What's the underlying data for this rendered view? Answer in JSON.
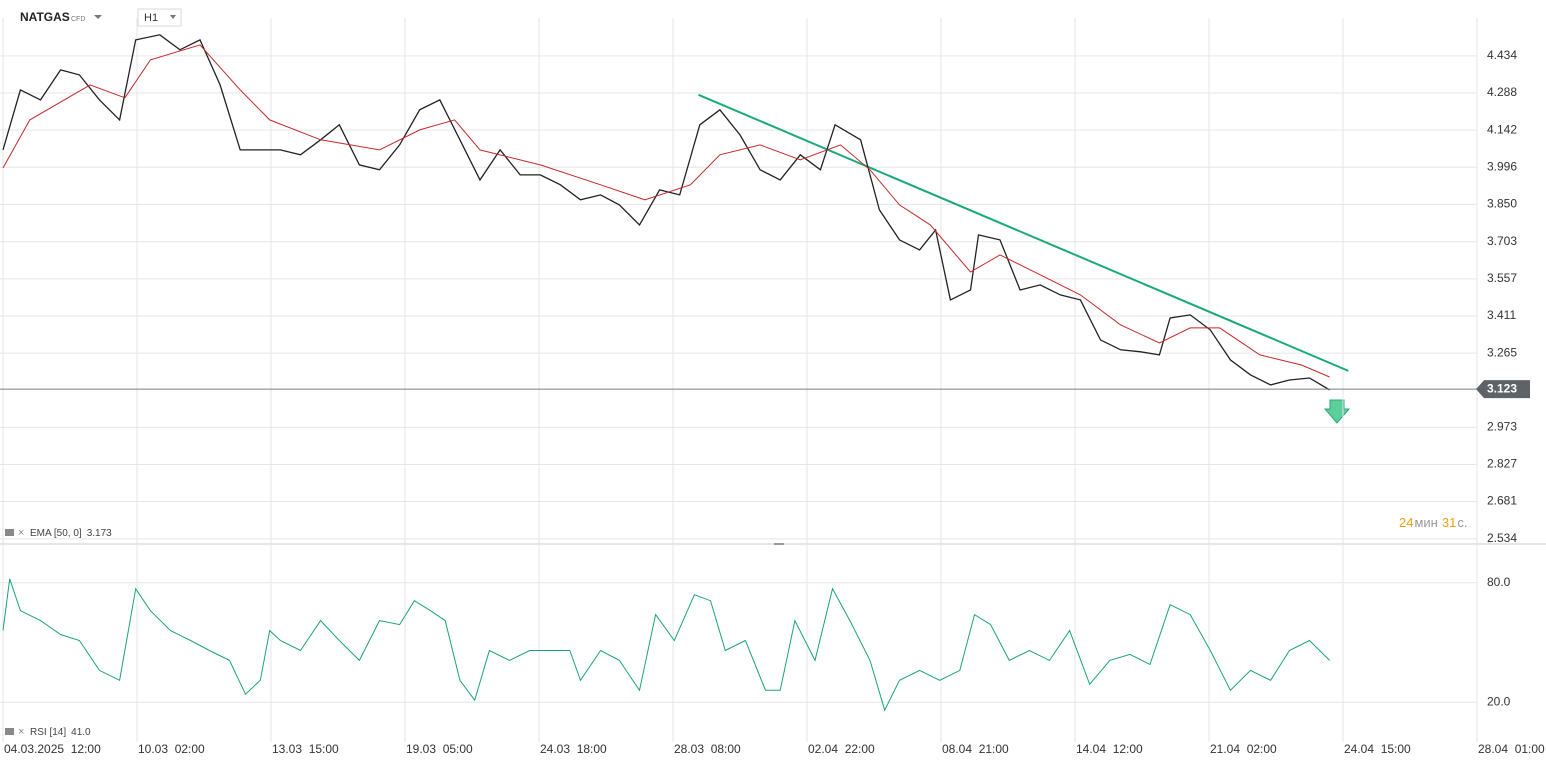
{
  "chart_data": [
    {
      "type": "line",
      "title": "NATGAS",
      "subtitle": "CFD",
      "timeframe": "H1",
      "xlim": [
        0,
        11
      ],
      "ylim": [
        2.518,
        4.583
      ],
      "yticks": [
        {
          "value": 4.434,
          "label": "4.434"
        },
        {
          "value": 4.288,
          "label": "4.288"
        },
        {
          "value": 4.142,
          "label": "4.142"
        },
        {
          "value": 3.996,
          "label": "3.996"
        },
        {
          "value": 3.85,
          "label": "3.850"
        },
        {
          "value": 3.703,
          "label": "3.703"
        },
        {
          "value": 3.557,
          "label": "3.557"
        },
        {
          "value": 3.411,
          "label": "3.411"
        },
        {
          "value": 3.265,
          "label": "3.265"
        },
        {
          "value": 2.973,
          "label": "2.973"
        },
        {
          "value": 2.827,
          "label": "2.827"
        },
        {
          "value": 2.681,
          "label": "2.681"
        },
        {
          "value": 2.534,
          "label": "2.534"
        }
      ],
      "grid": true,
      "current_price": 3.123,
      "series": [
        {
          "name": "NATGAS",
          "color": "#222222",
          "x": [
            0,
            0.13,
            0.28,
            0.43,
            0.57,
            0.72,
            0.87,
            0.99,
            1.17,
            1.32,
            1.47,
            1.62,
            1.77,
            1.92,
            2.07,
            2.22,
            2.37,
            2.51,
            2.66,
            2.81,
            2.96,
            3.11,
            3.26,
            3.41,
            3.56,
            3.71,
            3.86,
            4.01,
            4.16,
            4.31,
            4.46,
            4.6,
            4.75,
            4.9,
            5.05,
            5.2,
            5.35,
            5.5,
            5.65,
            5.8,
            5.95,
            6.1,
            6.21,
            6.4,
            6.54,
            6.69,
            6.84,
            6.96,
            7.07,
            7.22,
            7.28,
            7.44,
            7.59,
            7.74,
            7.89,
            8.04,
            8.19,
            8.34,
            8.49,
            8.63,
            8.71,
            8.86,
            9.01,
            9.16,
            9.31,
            9.46,
            9.6,
            9.75,
            9.9
          ],
          "values": [
            4.064,
            4.3,
            4.261,
            4.379,
            4.359,
            4.261,
            4.182,
            4.497,
            4.517,
            4.458,
            4.497,
            4.32,
            4.064,
            4.064,
            4.064,
            4.045,
            4.104,
            4.163,
            4.005,
            3.986,
            4.084,
            4.222,
            4.261,
            4.104,
            3.946,
            4.064,
            3.966,
            3.966,
            3.927,
            3.868,
            3.887,
            3.848,
            3.769,
            3.907,
            3.887,
            4.163,
            4.222,
            4.123,
            3.986,
            3.946,
            4.045,
            3.986,
            4.163,
            4.104,
            3.828,
            3.71,
            3.671,
            3.749,
            3.474,
            3.513,
            3.73,
            3.71,
            3.513,
            3.533,
            3.494,
            3.474,
            3.317,
            3.278,
            3.27,
            3.258,
            3.403,
            3.415,
            3.356,
            3.238,
            3.179,
            3.14,
            3.159,
            3.167,
            3.12
          ]
        },
        {
          "name": "EMA [50, 0]",
          "legend_value": 3.173,
          "color": "#c62828",
          "x": [
            0,
            0.2,
            0.65,
            0.91,
            1.1,
            1.47,
            1.77,
            1.99,
            2.37,
            2.81,
            3.11,
            3.37,
            3.56,
            4.01,
            4.46,
            4.79,
            5.13,
            5.35,
            5.65,
            5.95,
            6.25,
            6.47,
            6.69,
            6.92,
            7.22,
            7.44,
            7.74,
            8.04,
            8.34,
            8.63,
            8.86,
            9.08,
            9.38,
            9.69,
            9.9
          ],
          "values": [
            3.993,
            4.182,
            4.32,
            4.269,
            4.418,
            4.477,
            4.3,
            4.182,
            4.104,
            4.064,
            4.143,
            4.182,
            4.064,
            4.005,
            3.927,
            3.868,
            3.927,
            4.045,
            4.084,
            4.025,
            4.084,
            3.986,
            3.848,
            3.769,
            3.584,
            3.651,
            3.573,
            3.494,
            3.376,
            3.305,
            3.364,
            3.364,
            3.258,
            3.218,
            3.171
          ]
        }
      ],
      "trendline": {
        "x": [
          5.19,
          10.04
        ],
        "values": [
          4.281,
          3.195
        ],
        "color": "#1aaa7a"
      },
      "countdown": {
        "minutes": 24,
        "min_label": "мин",
        "seconds": 31,
        "sec_label": "с."
      }
    },
    {
      "type": "line",
      "xlim": [
        0,
        11
      ],
      "ylim": [
        0,
        100
      ],
      "yticks": [
        {
          "value": 80,
          "label": "80.0"
        },
        {
          "value": 20,
          "label": "20.0"
        }
      ],
      "xticks": [
        {
          "value": 0,
          "label": "04.03.2025  12:00"
        },
        {
          "value": 1,
          "label": "10.03  02:00"
        },
        {
          "value": 2,
          "label": "13.03  15:00"
        },
        {
          "value": 3,
          "label": "19.03  05:00"
        },
        {
          "value": 4,
          "label": "24.03  18:00"
        },
        {
          "value": 5,
          "label": "28.03  08:00"
        },
        {
          "value": 6,
          "label": "02.04  22:00"
        },
        {
          "value": 7,
          "label": "08.04  21:00"
        },
        {
          "value": 8,
          "label": "14.04  12:00"
        },
        {
          "value": 9,
          "label": "21.04  02:00"
        },
        {
          "value": 10,
          "label": "24.04  15:00"
        },
        {
          "value": 11,
          "label": "28.04  01:00"
        }
      ],
      "series": [
        {
          "name": "RSI [14]",
          "legend_value": "41.0",
          "color": "#1aa37a",
          "x": [
            0,
            0.05,
            0.13,
            0.28,
            0.43,
            0.57,
            0.72,
            0.87,
            0.99,
            1.1,
            1.25,
            1.4,
            1.54,
            1.69,
            1.81,
            1.92,
            1.99,
            2.07,
            2.22,
            2.37,
            2.51,
            2.66,
            2.81,
            2.96,
            3.07,
            3.19,
            3.3,
            3.41,
            3.52,
            3.63,
            3.78,
            3.93,
            4.08,
            4.23,
            4.31,
            4.46,
            4.6,
            4.75,
            4.87,
            5.01,
            5.16,
            5.28,
            5.39,
            5.54,
            5.69,
            5.8,
            5.91,
            6.06,
            6.19,
            6.32,
            6.47,
            6.58,
            6.69,
            6.84,
            6.99,
            7.14,
            7.25,
            7.37,
            7.51,
            7.66,
            7.81,
            7.96,
            8.11,
            8.26,
            8.41,
            8.56,
            8.71,
            8.86,
            9.01,
            9.16,
            9.31,
            9.46,
            9.6,
            9.75,
            9.9
          ],
          "values": [
            56,
            82,
            66,
            61,
            54,
            51,
            36,
            31,
            77,
            66,
            56,
            51,
            46,
            41,
            24,
            31,
            56,
            51,
            46,
            61,
            51,
            41,
            61,
            59,
            71,
            66,
            61,
            31,
            21,
            46,
            41,
            46,
            46,
            46,
            31,
            46,
            41,
            26,
            64,
            51,
            74,
            71,
            46,
            51,
            26,
            26,
            61,
            41,
            77,
            61,
            41,
            16,
            31,
            36,
            31,
            36,
            64,
            59,
            41,
            46,
            41,
            56,
            29,
            41,
            44,
            39,
            69,
            64,
            46,
            26,
            36,
            31,
            46,
            51,
            41
          ]
        }
      ]
    }
  ]
}
